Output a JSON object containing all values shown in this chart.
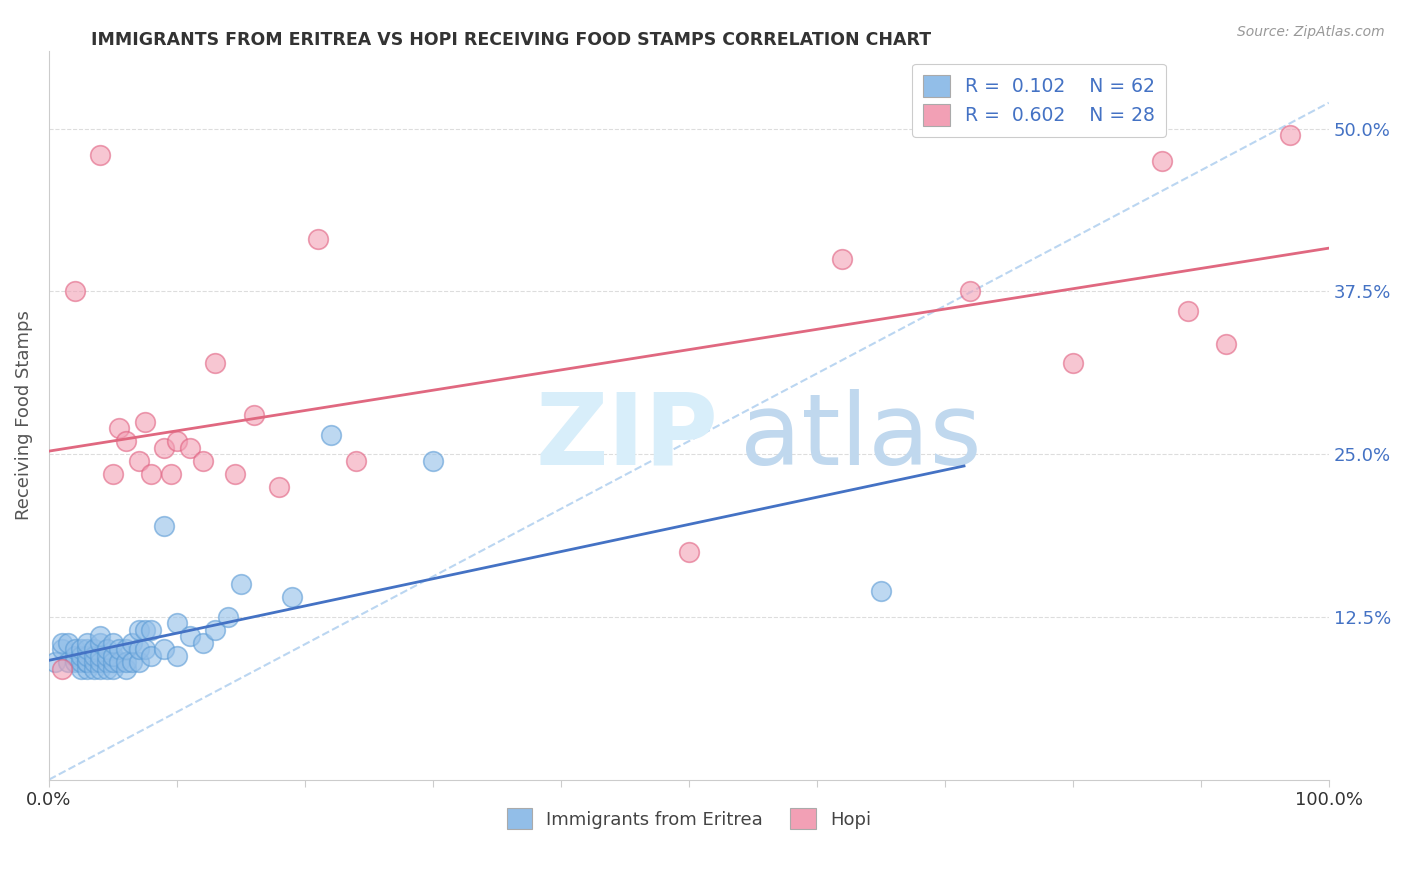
{
  "title": "IMMIGRANTS FROM ERITREA VS HOPI RECEIVING FOOD STAMPS CORRELATION CHART",
  "source": "Source: ZipAtlas.com",
  "ylabel": "Receiving Food Stamps",
  "xlim": [
    0,
    1.0
  ],
  "ylim": [
    0,
    0.56
  ],
  "x_ticks": [
    0.0,
    0.1,
    0.2,
    0.3,
    0.4,
    0.5,
    0.6,
    0.7,
    0.8,
    0.9,
    1.0
  ],
  "x_tick_labels": [
    "0.0%",
    "",
    "",
    "",
    "",
    "",
    "",
    "",
    "",
    "",
    "100.0%"
  ],
  "y_ticks": [
    0.0,
    0.125,
    0.25,
    0.375,
    0.5
  ],
  "y_tick_labels": [
    "",
    "12.5%",
    "25.0%",
    "37.5%",
    "50.0%"
  ],
  "blue_color": "#92BEE8",
  "pink_color": "#F2A0B5",
  "blue_edge_color": "#5B9BD5",
  "pink_edge_color": "#E06080",
  "blue_line_color": "#4472C4",
  "pink_line_color": "#E06880",
  "dashed_line_color": "#AACCEE",
  "blue_scatter_x": [
    0.005,
    0.01,
    0.01,
    0.015,
    0.015,
    0.02,
    0.02,
    0.02,
    0.025,
    0.025,
    0.025,
    0.025,
    0.03,
    0.03,
    0.03,
    0.03,
    0.03,
    0.03,
    0.035,
    0.035,
    0.035,
    0.035,
    0.04,
    0.04,
    0.04,
    0.04,
    0.04,
    0.045,
    0.045,
    0.045,
    0.045,
    0.05,
    0.05,
    0.05,
    0.05,
    0.055,
    0.055,
    0.06,
    0.06,
    0.06,
    0.065,
    0.065,
    0.07,
    0.07,
    0.07,
    0.075,
    0.075,
    0.08,
    0.08,
    0.09,
    0.09,
    0.1,
    0.1,
    0.11,
    0.12,
    0.13,
    0.14,
    0.15,
    0.19,
    0.22,
    0.3,
    0.65
  ],
  "blue_scatter_y": [
    0.09,
    0.1,
    0.105,
    0.09,
    0.105,
    0.09,
    0.095,
    0.1,
    0.085,
    0.09,
    0.095,
    0.1,
    0.085,
    0.09,
    0.09,
    0.095,
    0.1,
    0.105,
    0.085,
    0.09,
    0.095,
    0.1,
    0.085,
    0.09,
    0.095,
    0.105,
    0.11,
    0.085,
    0.09,
    0.095,
    0.1,
    0.085,
    0.09,
    0.095,
    0.105,
    0.09,
    0.1,
    0.085,
    0.09,
    0.1,
    0.09,
    0.105,
    0.09,
    0.1,
    0.115,
    0.1,
    0.115,
    0.095,
    0.115,
    0.1,
    0.195,
    0.095,
    0.12,
    0.11,
    0.105,
    0.115,
    0.125,
    0.15,
    0.14,
    0.265,
    0.245,
    0.145
  ],
  "pink_scatter_x": [
    0.01,
    0.02,
    0.04,
    0.05,
    0.055,
    0.06,
    0.07,
    0.075,
    0.08,
    0.09,
    0.095,
    0.1,
    0.11,
    0.12,
    0.13,
    0.145,
    0.16,
    0.18,
    0.21,
    0.24,
    0.5,
    0.62,
    0.72,
    0.8,
    0.87,
    0.89,
    0.92,
    0.97
  ],
  "pink_scatter_y": [
    0.085,
    0.375,
    0.48,
    0.235,
    0.27,
    0.26,
    0.245,
    0.275,
    0.235,
    0.255,
    0.235,
    0.26,
    0.255,
    0.245,
    0.32,
    0.235,
    0.28,
    0.225,
    0.415,
    0.245,
    0.175,
    0.4,
    0.375,
    0.32,
    0.475,
    0.36,
    0.335,
    0.495
  ],
  "watermark_zip_color": "#D0E8F8",
  "watermark_atlas_color": "#C8DCF0"
}
